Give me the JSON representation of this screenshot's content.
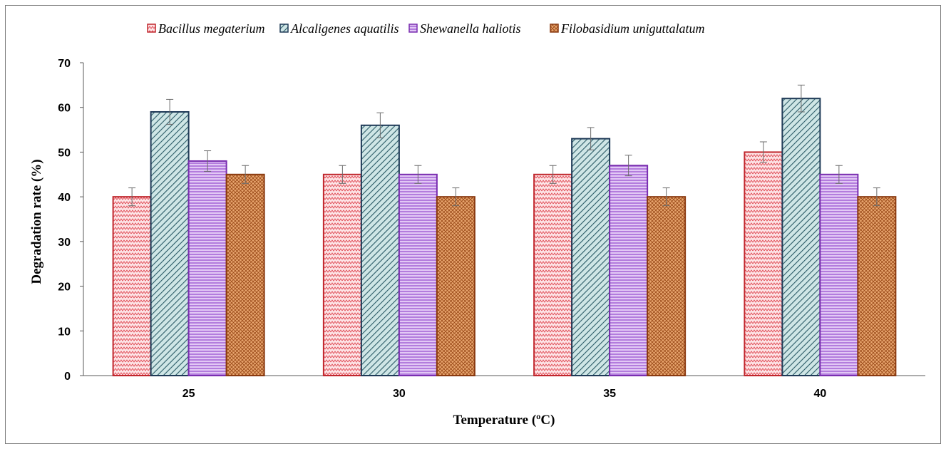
{
  "chart_data": {
    "type": "bar",
    "title": "",
    "xlabel": "Temperature (ºC)",
    "ylabel": "Degradation rate (%)",
    "categories": [
      "25",
      "30",
      "35",
      "40"
    ],
    "ylim": [
      0,
      70
    ],
    "yticks": [
      0,
      10,
      20,
      30,
      40,
      50,
      60,
      70
    ],
    "grid": false,
    "legend_position": "top",
    "error_bars": true,
    "series": [
      {
        "name": "Bacillus megaterium",
        "values": [
          40,
          45,
          45,
          50
        ],
        "errors": [
          2,
          2,
          2,
          2.3
        ],
        "color": "#c0272d",
        "fill": "#f7c8cc",
        "pattern": "zigzag"
      },
      {
        "name": "Alcaligenes aquatilis",
        "values": [
          59,
          56,
          53,
          62
        ],
        "errors": [
          2.8,
          2.8,
          2.5,
          3
        ],
        "color": "#1f3a57",
        "fill": "#b8d8d8",
        "pattern": "diagonal"
      },
      {
        "name": "Shewanella haliotis",
        "values": [
          48,
          45,
          47,
          45
        ],
        "errors": [
          2.3,
          2,
          2.3,
          2
        ],
        "color": "#7a2fb0",
        "fill": "#c79ce6",
        "pattern": "horizontal"
      },
      {
        "name": "Filobasidium uniguttalatum",
        "values": [
          45,
          40,
          40,
          40
        ],
        "errors": [
          2,
          2,
          2,
          2
        ],
        "color": "#8a3a10",
        "fill": "#d98b55",
        "pattern": "grid"
      }
    ]
  }
}
